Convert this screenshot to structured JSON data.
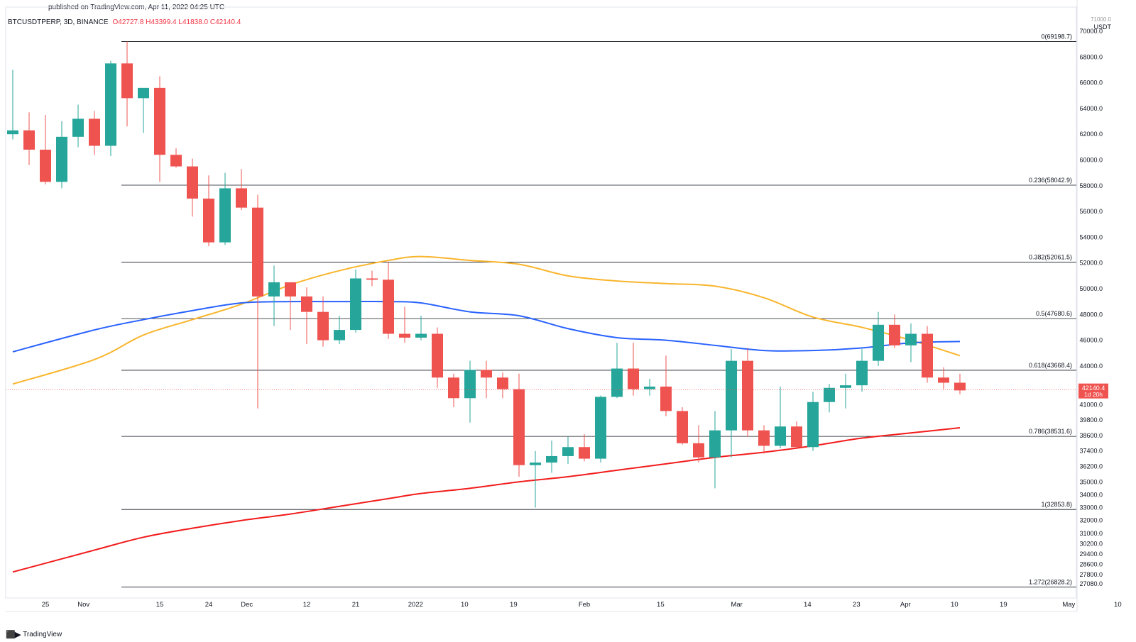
{
  "header": {
    "published": "published on TradingView.com, Apr 11, 2022 04:25 UTC",
    "symbol": "BTCUSDTPERP, 3D, BINANCE",
    "open": "O42727.8",
    "high": "H43399.4",
    "low": "L41838.0",
    "close": "C42140.4"
  },
  "price_axis": {
    "currency": "USDT",
    "last_price": "42140.4",
    "countdown": "1d 20h",
    "top_partial": "71000.0"
  },
  "footer": {
    "brand": "TradingView"
  },
  "colors": {
    "up": "#26a69a",
    "down": "#ef5350",
    "ema_yellow": "#f9b52d",
    "ema_blue": "#2962ff",
    "ema_red": "#f21c1c",
    "fib_line": "#131722"
  },
  "chart_data": {
    "type": "candlestick",
    "symbol": "BTCUSDTPERP",
    "interval": "3D",
    "exchange": "BINANCE",
    "ylim": [
      26300,
      71500
    ],
    "y_ticks": [
      70000,
      68000,
      66000,
      64000,
      62000,
      60000,
      58000,
      56000,
      54000,
      52000,
      50000,
      48000,
      46000,
      44000,
      41000,
      39800,
      38600,
      37400,
      36200,
      35000,
      34000,
      33000,
      32000,
      31000,
      30200,
      29400,
      28600,
      27800,
      27080
    ],
    "y_tick_labels": [
      "70000.0",
      "68000.0",
      "66000.0",
      "64000.0",
      "62000.0",
      "60000.0",
      "58000.0",
      "56000.0",
      "54000.0",
      "52000.0",
      "50000.0",
      "48000.0",
      "46000.0",
      "44000.0",
      "41000.0",
      "39800.0",
      "38600.0",
      "37400.0",
      "36200.0",
      "35000.0",
      "34000.0",
      "33000.0",
      "32000.0",
      "31000.0",
      "30200.0",
      "29400.0",
      "28600.0",
      "27800.0",
      "27080.0"
    ],
    "x_ticks": [
      {
        "label": "25",
        "date": "2021-10-25"
      },
      {
        "label": "Nov",
        "date": "2021-11-01"
      },
      {
        "label": "15",
        "date": "2021-11-15"
      },
      {
        "label": "24",
        "date": "2021-11-24"
      },
      {
        "label": "Dec",
        "date": "2021-12-01"
      },
      {
        "label": "12",
        "date": "2021-12-12"
      },
      {
        "label": "21",
        "date": "2021-12-21"
      },
      {
        "label": "2022",
        "date": "2022-01-01"
      },
      {
        "label": "10",
        "date": "2022-01-10"
      },
      {
        "label": "19",
        "date": "2022-01-19"
      },
      {
        "label": "Feb",
        "date": "2022-02-01"
      },
      {
        "label": "15",
        "date": "2022-02-15"
      },
      {
        "label": "Mar",
        "date": "2022-03-01"
      },
      {
        "label": "14",
        "date": "2022-03-14"
      },
      {
        "label": "23",
        "date": "2022-03-23"
      },
      {
        "label": "Apr",
        "date": "2022-04-01"
      },
      {
        "label": "10",
        "date": "2022-04-10"
      },
      {
        "label": "19",
        "date": "2022-04-19"
      },
      {
        "label": "May",
        "date": "2022-05-01"
      },
      {
        "label": "10",
        "date": "2022-05-10"
      }
    ],
    "candles": [
      {
        "date": "2021-10-19",
        "o": 62000,
        "h": 67000,
        "l": 61600,
        "c": 62300
      },
      {
        "date": "2021-10-22",
        "o": 62300,
        "h": 63700,
        "l": 59600,
        "c": 60800
      },
      {
        "date": "2021-10-25",
        "o": 60800,
        "h": 63500,
        "l": 58100,
        "c": 58300
      },
      {
        "date": "2021-10-28",
        "o": 58300,
        "h": 63000,
        "l": 57800,
        "c": 61800
      },
      {
        "date": "2021-10-31",
        "o": 61800,
        "h": 64300,
        "l": 61000,
        "c": 63200
      },
      {
        "date": "2021-11-03",
        "o": 63200,
        "h": 63800,
        "l": 60400,
        "c": 61100
      },
      {
        "date": "2021-11-06",
        "o": 61100,
        "h": 67700,
        "l": 60300,
        "c": 67500
      },
      {
        "date": "2021-11-09",
        "o": 67500,
        "h": 69200,
        "l": 62600,
        "c": 64800
      },
      {
        "date": "2021-11-12",
        "o": 64800,
        "h": 65300,
        "l": 62100,
        "c": 65600
      },
      {
        "date": "2021-11-15",
        "o": 65600,
        "h": 66500,
        "l": 58300,
        "c": 60400
      },
      {
        "date": "2021-11-18",
        "o": 60400,
        "h": 60900,
        "l": 59400,
        "c": 59500
      },
      {
        "date": "2021-11-21",
        "o": 59500,
        "h": 60100,
        "l": 55600,
        "c": 57000
      },
      {
        "date": "2021-11-24",
        "o": 57000,
        "h": 58800,
        "l": 53300,
        "c": 53600
      },
      {
        "date": "2021-11-27",
        "o": 53600,
        "h": 59000,
        "l": 53400,
        "c": 57800
      },
      {
        "date": "2021-11-30",
        "o": 57800,
        "h": 59300,
        "l": 56100,
        "c": 56300
      },
      {
        "date": "2021-12-03",
        "o": 56300,
        "h": 57300,
        "l": 40700,
        "c": 49400
      },
      {
        "date": "2021-12-06",
        "o": 49400,
        "h": 51800,
        "l": 47100,
        "c": 50500
      },
      {
        "date": "2021-12-09",
        "o": 50500,
        "h": 50500,
        "l": 46800,
        "c": 49400
      },
      {
        "date": "2021-12-12",
        "o": 49400,
        "h": 50100,
        "l": 45700,
        "c": 48200
      },
      {
        "date": "2021-12-15",
        "o": 48200,
        "h": 49400,
        "l": 45500,
        "c": 46000
      },
      {
        "date": "2021-12-18",
        "o": 46000,
        "h": 47900,
        "l": 45700,
        "c": 46800
      },
      {
        "date": "2021-12-21",
        "o": 46800,
        "h": 51500,
        "l": 46600,
        "c": 50800
      },
      {
        "date": "2021-12-24",
        "o": 50800,
        "h": 51400,
        "l": 50200,
        "c": 50700
      },
      {
        "date": "2021-12-27",
        "o": 50700,
        "h": 52100,
        "l": 46100,
        "c": 46500
      },
      {
        "date": "2021-12-30",
        "o": 46500,
        "h": 48600,
        "l": 45800,
        "c": 46200
      },
      {
        "date": "2022-01-02",
        "o": 46200,
        "h": 47900,
        "l": 46000,
        "c": 46500
      },
      {
        "date": "2022-01-05",
        "o": 46500,
        "h": 47000,
        "l": 42300,
        "c": 43100
      },
      {
        "date": "2022-01-08",
        "o": 43100,
        "h": 43400,
        "l": 40800,
        "c": 41500
      },
      {
        "date": "2022-01-11",
        "o": 41500,
        "h": 44400,
        "l": 39600,
        "c": 43700
      },
      {
        "date": "2022-01-14",
        "o": 43700,
        "h": 44400,
        "l": 41500,
        "c": 43100
      },
      {
        "date": "2022-01-17",
        "o": 43100,
        "h": 43500,
        "l": 41500,
        "c": 42200
      },
      {
        "date": "2022-01-20",
        "o": 42200,
        "h": 43400,
        "l": 35400,
        "c": 36300
      },
      {
        "date": "2022-01-23",
        "o": 36300,
        "h": 37400,
        "l": 33000,
        "c": 36500
      },
      {
        "date": "2022-01-26",
        "o": 36500,
        "h": 38200,
        "l": 35700,
        "c": 37000
      },
      {
        "date": "2022-01-29",
        "o": 37000,
        "h": 38500,
        "l": 36400,
        "c": 37700
      },
      {
        "date": "2022-02-01",
        "o": 37700,
        "h": 38700,
        "l": 36600,
        "c": 36800
      },
      {
        "date": "2022-02-04",
        "o": 36800,
        "h": 41700,
        "l": 36500,
        "c": 41600
      },
      {
        "date": "2022-02-07",
        "o": 41600,
        "h": 45800,
        "l": 41500,
        "c": 43800
      },
      {
        "date": "2022-02-10",
        "o": 43800,
        "h": 45800,
        "l": 41700,
        "c": 42200
      },
      {
        "date": "2022-02-13",
        "o": 42200,
        "h": 43000,
        "l": 41700,
        "c": 42400
      },
      {
        "date": "2022-02-16",
        "o": 42400,
        "h": 44800,
        "l": 40100,
        "c": 40500
      },
      {
        "date": "2022-02-19",
        "o": 40500,
        "h": 40800,
        "l": 37900,
        "c": 38000
      },
      {
        "date": "2022-02-22",
        "o": 38000,
        "h": 39400,
        "l": 36500,
        "c": 36900
      },
      {
        "date": "2022-02-25",
        "o": 36900,
        "h": 40500,
        "l": 34500,
        "c": 39000
      },
      {
        "date": "2022-02-28",
        "o": 39000,
        "h": 45300,
        "l": 36900,
        "c": 44400
      },
      {
        "date": "2022-03-03",
        "o": 44400,
        "h": 45400,
        "l": 38500,
        "c": 39000
      },
      {
        "date": "2022-03-06",
        "o": 39000,
        "h": 39400,
        "l": 37200,
        "c": 37800
      },
      {
        "date": "2022-03-09",
        "o": 37800,
        "h": 42400,
        "l": 37600,
        "c": 39300
      },
      {
        "date": "2022-03-12",
        "o": 39300,
        "h": 39700,
        "l": 37600,
        "c": 37700
      },
      {
        "date": "2022-03-15",
        "o": 37700,
        "h": 42000,
        "l": 37400,
        "c": 41200
      },
      {
        "date": "2022-03-18",
        "o": 41200,
        "h": 42600,
        "l": 40400,
        "c": 42300
      },
      {
        "date": "2022-03-21",
        "o": 42300,
        "h": 43400,
        "l": 40700,
        "c": 42500
      },
      {
        "date": "2022-03-24",
        "o": 42500,
        "h": 45300,
        "l": 42000,
        "c": 44400
      },
      {
        "date": "2022-03-27",
        "o": 44400,
        "h": 48200,
        "l": 44000,
        "c": 47200
      },
      {
        "date": "2022-03-30",
        "o": 47200,
        "h": 48000,
        "l": 45400,
        "c": 45600
      },
      {
        "date": "2022-04-02",
        "o": 45600,
        "h": 47300,
        "l": 44300,
        "c": 46500
      },
      {
        "date": "2022-04-05",
        "o": 46500,
        "h": 47100,
        "l": 42700,
        "c": 43100
      },
      {
        "date": "2022-04-08",
        "o": 43100,
        "h": 43900,
        "l": 42200,
        "c": 42700
      },
      {
        "date": "2022-04-11",
        "o": 42700,
        "h": 43400,
        "l": 41800,
        "c": 42100
      }
    ],
    "fib_levels": [
      {
        "ratio": "0",
        "price": 69198.7,
        "label": "0(69198.7)"
      },
      {
        "ratio": "0.236",
        "price": 58042.9,
        "label": "0.236(58042.9)"
      },
      {
        "ratio": "0.382",
        "price": 52061.5,
        "label": "0.382(52061.5)"
      },
      {
        "ratio": "0.5",
        "price": 47680.6,
        "label": "0.5(47680.6)"
      },
      {
        "ratio": "0.618",
        "price": 43668.4,
        "label": "0.618(43668.4)"
      },
      {
        "ratio": "0.786",
        "price": 38531.6,
        "label": "0.786(38531.6)"
      },
      {
        "ratio": "1",
        "price": 32853.8,
        "label": "1(32853.8)"
      },
      {
        "ratio": "1.272",
        "price": 26828.2,
        "label": "1.272(26828.2)"
      }
    ],
    "moving_averages": [
      {
        "color": "#f9b52d",
        "points": [
          {
            "date": "2021-10-19",
            "v": 42600
          },
          {
            "date": "2021-11-03",
            "v": 44500
          },
          {
            "date": "2021-11-12",
            "v": 46400
          },
          {
            "date": "2021-11-21",
            "v": 47600
          },
          {
            "date": "2021-11-30",
            "v": 48800
          },
          {
            "date": "2021-12-09",
            "v": 50300
          },
          {
            "date": "2021-12-18",
            "v": 51400
          },
          {
            "date": "2021-12-27",
            "v": 52200
          },
          {
            "date": "2022-01-02",
            "v": 52500
          },
          {
            "date": "2022-01-11",
            "v": 52200
          },
          {
            "date": "2022-01-20",
            "v": 51900
          },
          {
            "date": "2022-01-29",
            "v": 51000
          },
          {
            "date": "2022-02-07",
            "v": 50600
          },
          {
            "date": "2022-02-16",
            "v": 50400
          },
          {
            "date": "2022-02-25",
            "v": 50200
          },
          {
            "date": "2022-03-06",
            "v": 49300
          },
          {
            "date": "2022-03-15",
            "v": 47800
          },
          {
            "date": "2022-03-24",
            "v": 47000
          },
          {
            "date": "2022-04-02",
            "v": 46000
          },
          {
            "date": "2022-04-11",
            "v": 44800
          }
        ]
      },
      {
        "color": "#2962ff",
        "points": [
          {
            "date": "2021-10-19",
            "v": 45100
          },
          {
            "date": "2021-11-03",
            "v": 46800
          },
          {
            "date": "2021-11-12",
            "v": 47600
          },
          {
            "date": "2021-11-21",
            "v": 48300
          },
          {
            "date": "2021-11-30",
            "v": 48900
          },
          {
            "date": "2021-12-09",
            "v": 49000
          },
          {
            "date": "2021-12-18",
            "v": 49000
          },
          {
            "date": "2021-12-27",
            "v": 49000
          },
          {
            "date": "2022-01-02",
            "v": 48900
          },
          {
            "date": "2022-01-11",
            "v": 48200
          },
          {
            "date": "2022-01-20",
            "v": 47900
          },
          {
            "date": "2022-01-29",
            "v": 46900
          },
          {
            "date": "2022-02-07",
            "v": 46200
          },
          {
            "date": "2022-02-16",
            "v": 46000
          },
          {
            "date": "2022-02-25",
            "v": 45600
          },
          {
            "date": "2022-03-06",
            "v": 45200
          },
          {
            "date": "2022-03-15",
            "v": 45200
          },
          {
            "date": "2022-03-24",
            "v": 45400
          },
          {
            "date": "2022-04-02",
            "v": 45800
          },
          {
            "date": "2022-04-11",
            "v": 45900
          }
        ]
      },
      {
        "color": "#f21c1c",
        "points": [
          {
            "date": "2021-10-19",
            "v": 28000
          },
          {
            "date": "2021-11-03",
            "v": 29700
          },
          {
            "date": "2021-11-12",
            "v": 30700
          },
          {
            "date": "2021-11-21",
            "v": 31400
          },
          {
            "date": "2021-11-30",
            "v": 32000
          },
          {
            "date": "2021-12-09",
            "v": 32500
          },
          {
            "date": "2021-12-18",
            "v": 33100
          },
          {
            "date": "2021-12-27",
            "v": 33700
          },
          {
            "date": "2022-01-02",
            "v": 34100
          },
          {
            "date": "2022-01-11",
            "v": 34500
          },
          {
            "date": "2022-01-20",
            "v": 35000
          },
          {
            "date": "2022-01-29",
            "v": 35400
          },
          {
            "date": "2022-02-07",
            "v": 35900
          },
          {
            "date": "2022-02-16",
            "v": 36400
          },
          {
            "date": "2022-02-25",
            "v": 36900
          },
          {
            "date": "2022-03-06",
            "v": 37300
          },
          {
            "date": "2022-03-15",
            "v": 37800
          },
          {
            "date": "2022-03-24",
            "v": 38400
          },
          {
            "date": "2022-04-02",
            "v": 38800
          },
          {
            "date": "2022-04-11",
            "v": 39200
          }
        ]
      }
    ],
    "last_price": 42140.4
  }
}
